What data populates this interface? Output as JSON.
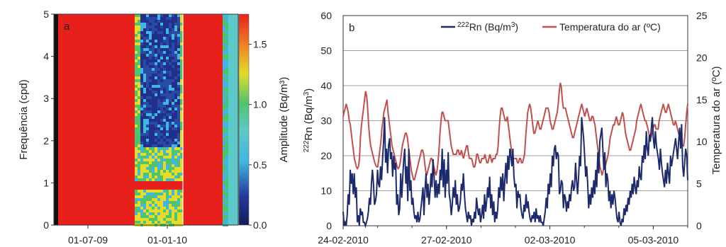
{
  "chart_data": [
    {
      "type": "heatmap",
      "panel_label": "a",
      "ylabel": "Frequência (cpd)",
      "xticks": [
        "01-07-09",
        "01-01-10"
      ],
      "yticks": [
        "0",
        "1",
        "2",
        "3",
        "4",
        "5"
      ],
      "ylim": [
        0,
        5
      ],
      "colorbar": {
        "label": "Amplitude (Bq/m³)",
        "ticks": [
          "0.0",
          "0.5",
          "1.0",
          "1.5"
        ],
        "range": [
          0,
          1.75
        ]
      },
      "palette": {
        "high": "#e8201c",
        "mid": "#3fb7e0",
        "low": "#1f2f8a",
        "yellow": "#e4dc2a",
        "green": "#4ec56a",
        "teal": "#5ec9c8"
      }
    },
    {
      "type": "line",
      "panel_label": "b",
      "xticks": [
        "24-02-2010",
        "27-02-2010",
        "02-03-2010",
        "05-03-2010"
      ],
      "x_range": [
        "24-02-2010",
        "06-03-2010"
      ],
      "ylabel_left": "²²²Rn (Bq/m³)",
      "ylabel_right": "Temperatura do ar (ºC)",
      "yticks_left": [
        "0",
        "10",
        "20",
        "30",
        "40",
        "50",
        "60"
      ],
      "yticks_right": [
        "0",
        "5",
        "10",
        "15",
        "20",
        "25"
      ],
      "ylim_left": [
        0,
        60
      ],
      "ylim_right": [
        0,
        25
      ],
      "grid": true,
      "legend_position": "top-right",
      "series": [
        {
          "name_sup": "222",
          "name_text": "Rn (Bq/m",
          "name_unit_sup": "3",
          "name_close": ")",
          "axis": "left",
          "color": "#1d2a6b",
          "values": [
            4,
            0,
            1,
            0,
            3,
            9,
            6,
            16,
            12,
            15,
            9,
            15,
            8,
            11,
            1,
            3,
            0,
            5,
            3,
            4,
            1,
            1,
            0,
            1,
            2,
            4,
            8,
            6,
            12,
            16,
            12,
            6,
            7,
            9,
            16,
            12,
            11,
            17,
            13,
            19,
            24,
            31,
            18,
            22,
            15,
            23,
            25,
            19,
            21,
            14,
            20,
            16,
            18,
            6,
            9,
            3,
            5,
            15,
            8,
            14,
            19,
            22,
            12,
            17,
            7,
            22,
            10,
            13,
            6,
            8,
            4,
            2,
            3,
            1,
            4,
            1,
            2,
            5,
            8,
            11,
            3,
            10,
            15,
            8,
            12,
            6,
            10,
            15,
            11,
            19,
            14,
            8,
            13,
            8,
            12,
            9,
            16,
            13,
            22,
            11,
            19,
            8,
            16,
            12,
            21,
            9,
            7,
            3,
            6,
            11,
            8,
            13,
            6,
            9,
            4,
            5,
            7,
            12,
            10,
            15,
            9,
            5,
            3,
            1,
            4,
            2,
            3,
            0,
            2,
            1,
            4,
            2,
            8,
            5,
            3,
            5,
            1,
            3,
            6,
            2,
            9,
            4,
            7,
            11,
            8,
            14,
            5,
            9,
            3,
            7,
            1,
            4,
            2,
            5,
            11,
            8,
            14,
            10,
            15,
            7,
            13,
            18,
            12,
            20,
            16,
            22,
            20,
            17,
            22,
            14,
            11,
            12,
            5,
            10,
            8,
            9,
            5,
            3,
            2,
            6,
            4,
            9,
            5,
            7,
            4,
            2,
            1,
            3,
            2,
            4,
            1,
            5,
            2,
            3,
            1,
            3,
            1,
            1,
            0,
            2,
            4,
            8,
            5,
            12,
            9,
            15,
            11,
            20,
            17,
            22,
            23,
            19,
            21,
            20,
            9,
            10,
            13,
            12,
            5,
            9,
            8,
            4,
            7,
            5,
            9,
            7,
            11,
            13,
            10,
            11,
            18,
            13,
            9,
            14,
            20,
            17,
            31,
            28,
            25,
            20,
            14,
            17,
            12,
            5,
            9,
            6,
            11,
            8,
            13,
            9,
            16,
            11,
            21,
            15,
            24,
            26,
            28,
            22,
            16,
            21,
            11,
            15,
            13,
            7,
            10,
            5,
            9,
            6,
            10,
            8,
            5,
            2,
            1,
            4,
            1,
            0,
            2,
            1,
            5,
            3,
            6,
            4,
            8,
            6,
            10,
            8,
            12,
            9,
            14,
            11,
            9,
            13,
            11,
            17,
            14,
            13,
            20,
            18,
            23,
            19,
            27,
            22,
            20,
            26,
            24,
            28,
            31,
            25,
            22,
            27,
            23,
            21,
            19,
            16,
            22,
            18,
            15,
            13,
            11,
            16,
            12,
            18,
            15,
            12,
            20,
            17,
            19,
            21,
            23,
            25,
            22,
            19,
            24,
            28,
            22,
            29,
            17,
            14,
            18,
            22,
            20,
            13
          ]
        },
        {
          "name": "Temperatura do ar (ºC)",
          "axis": "right",
          "color": "#c0504d",
          "values": [
            13.0,
            13.5,
            14.0,
            14.5,
            14.0,
            13.5,
            12.5,
            12.0,
            11.0,
            10.0,
            9.0,
            8.0,
            7.5,
            7.0,
            6.8,
            7.0,
            8.0,
            10.5,
            12.0,
            13.0,
            14.0,
            15.0,
            16.0,
            15.5,
            14.0,
            12.0,
            10.5,
            9.5,
            9.0,
            8.5,
            8.0,
            7.5,
            7.2,
            7.0,
            7.0,
            8.0,
            9.0,
            10.0,
            11.5,
            12.5,
            13.5,
            14.0,
            14.5,
            15.0,
            13.5,
            12.5,
            11.5,
            10.5,
            9.5,
            9.0,
            8.5,
            8.0,
            7.5,
            7.0,
            6.8,
            7.0,
            7.5,
            8.5,
            9.5,
            10.0,
            10.5,
            11.0,
            11.0,
            10.5,
            9.5,
            8.5,
            7.5,
            6.5,
            6.0,
            5.5,
            5.5,
            6.0,
            6.5,
            7.0,
            7.5,
            8.0,
            8.5,
            9.0,
            9.0,
            8.5,
            7.5,
            6.5,
            6.0,
            6.5,
            7.0,
            7.5,
            8.0,
            8.0,
            7.5,
            7.0,
            6.5,
            6.0,
            6.5,
            7.5,
            9.0,
            11.0,
            12.5,
            13.5,
            13.5,
            13.0,
            12.5,
            12.5,
            12.5,
            12.5,
            11.5,
            10.5,
            9.5,
            9.0,
            8.5,
            8.5,
            8.5,
            8.5,
            9.0,
            9.0,
            8.5,
            8.5,
            9.0,
            8.5,
            8.0,
            8.5,
            9.0,
            9.5,
            9.5,
            8.5,
            8.0,
            8.0,
            8.0,
            7.5,
            7.0,
            7.0,
            7.5,
            8.5,
            8.5,
            8.0,
            7.5,
            7.5,
            8.0,
            8.0,
            8.0,
            8.5,
            8.0,
            7.5,
            7.5,
            8.0,
            8.5,
            8.0,
            7.5,
            8.0,
            8.0,
            8.0,
            8.5,
            8.5,
            9.5,
            11.5,
            13.0,
            14.0,
            14.0,
            13.5,
            13.0,
            12.5,
            12.5,
            13.0,
            12.0,
            11.0,
            10.0,
            9.0,
            8.5,
            8.0,
            8.0,
            8.0,
            8.0,
            7.5,
            7.5,
            8.0,
            8.0,
            7.5,
            7.5,
            8.0,
            8.5,
            10.5,
            12.0,
            13.5,
            14.0,
            14.5,
            14.0,
            13.0,
            12.0,
            11.0,
            11.0,
            11.5,
            12.0,
            12.5,
            12.0,
            11.5,
            11.5,
            12.0,
            12.5,
            13.0,
            13.5,
            14.0,
            14.0,
            14.0,
            13.5,
            12.5,
            12.0,
            11.5,
            11.5,
            12.0,
            12.5,
            13.0,
            13.5,
            14.5,
            16.0,
            17.0,
            16.5,
            15.0,
            14.0,
            14.0,
            14.0,
            13.5,
            13.0,
            12.5,
            12.0,
            11.5,
            11.0,
            10.5,
            10.5,
            11.0,
            11.5,
            12.0,
            12.5,
            13.0,
            13.5,
            14.0,
            14.5,
            14.0,
            13.5,
            13.0,
            13.5,
            14.0,
            13.5,
            13.0,
            12.5,
            12.5,
            13.0,
            13.0,
            12.5,
            12.0,
            11.0,
            10.0,
            9.0,
            8.0,
            7.0,
            6.5,
            6.0,
            6.5,
            7.0,
            7.0,
            7.5,
            8.0,
            8.5,
            9.5,
            10.5,
            11.0,
            11.5,
            12.0,
            12.0,
            12.5,
            13.0,
            12.5,
            12.0,
            12.0,
            12.5,
            13.0,
            13.5,
            13.0,
            12.0,
            11.0,
            10.5,
            10.0,
            9.5,
            9.0,
            9.0,
            9.5,
            10.0,
            10.5,
            11.0,
            11.5,
            12.5,
            13.0,
            13.5,
            14.0,
            14.5,
            14.0,
            13.5,
            13.0,
            12.5,
            12.5,
            12.0,
            11.5,
            11.0,
            10.5,
            10.5,
            11.0,
            11.5,
            12.0,
            12.0,
            11.5,
            11.5,
            11.5,
            12.5,
            13.0,
            13.5,
            14.0,
            14.5,
            14.0,
            13.5,
            13.5,
            14.0,
            14.5,
            14.0,
            13.5,
            13.0,
            12.5,
            12.0,
            12.0,
            12.5,
            12.0,
            11.5,
            11.0,
            10.5,
            10.5,
            10.0,
            9.5,
            9.5,
            10.5,
            12.0,
            13.5,
            14.5
          ]
        }
      ]
    }
  ]
}
